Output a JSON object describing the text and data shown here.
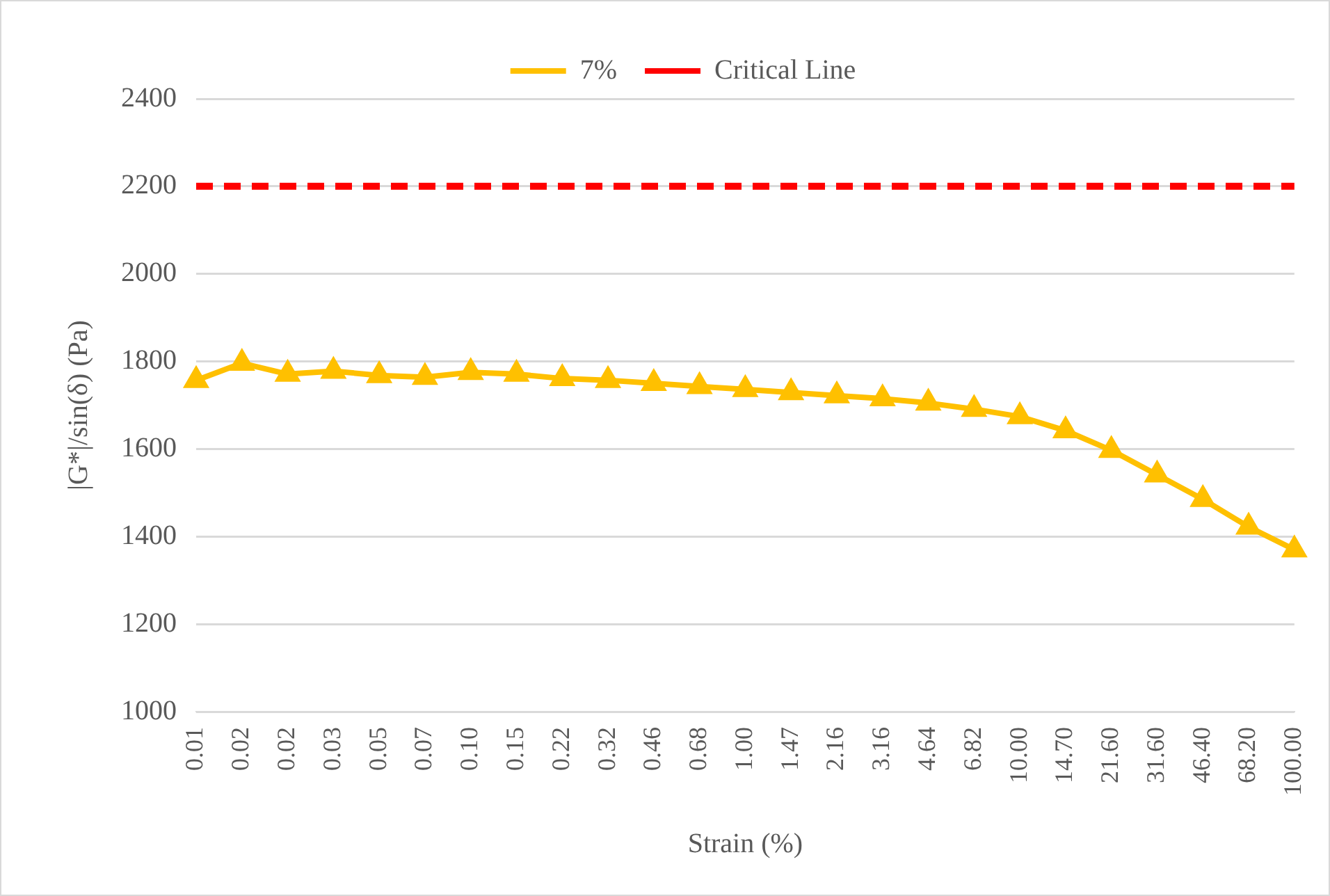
{
  "chart_data": {
    "type": "line",
    "xlabel": "Strain (%)",
    "ylabel": "|G*|/sin(δ) (Pa)",
    "categories": [
      "0.01",
      "0.02",
      "0.02",
      "0.03",
      "0.05",
      "0.07",
      "0.10",
      "0.15",
      "0.22",
      "0.32",
      "0.46",
      "0.68",
      "1.00",
      "1.47",
      "2.16",
      "3.16",
      "4.64",
      "6.82",
      "10.00",
      "14.70",
      "21.60",
      "31.60",
      "46.40",
      "68.20",
      "100.00"
    ],
    "series": [
      {
        "name": "7%",
        "color": "#ffc000",
        "marker": "triangle",
        "line_style": "solid",
        "values": [
          1757,
          1796,
          1771,
          1778,
          1768,
          1764,
          1775,
          1771,
          1761,
          1757,
          1750,
          1743,
          1736,
          1729,
          1722,
          1715,
          1705,
          1691,
          1674,
          1642,
          1597,
          1541,
          1485,
          1422,
          1370
        ]
      },
      {
        "name": "Critical Line",
        "color": "#ff0000",
        "marker": "none",
        "line_style": "dashed",
        "values": [
          2200,
          2200,
          2200,
          2200,
          2200,
          2200,
          2200,
          2200,
          2200,
          2200,
          2200,
          2200,
          2200,
          2200,
          2200,
          2200,
          2200,
          2200,
          2200,
          2200,
          2200,
          2200,
          2200,
          2200,
          2200
        ]
      }
    ],
    "ylim": [
      1000,
      2400
    ],
    "yticks": [
      1000,
      1200,
      1400,
      1600,
      1800,
      2000,
      2200,
      2400
    ],
    "grid": "y",
    "legend": "top"
  }
}
